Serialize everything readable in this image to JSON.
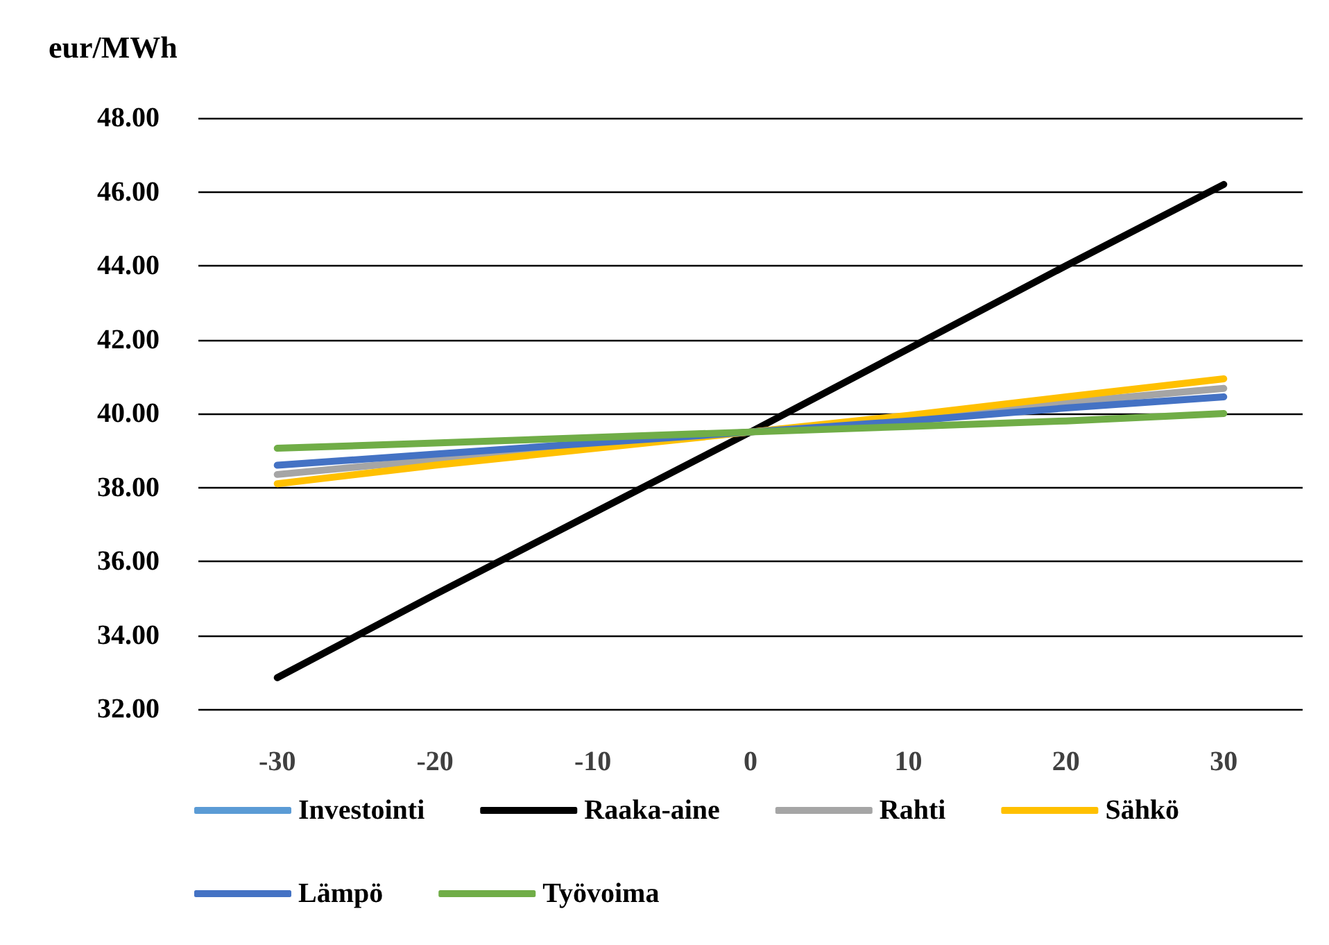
{
  "chart_data": {
    "type": "line",
    "ylabel": "eur/MWh",
    "categories": [
      "-30",
      "-20",
      "-10",
      "0",
      "10",
      "20",
      "30"
    ],
    "series": [
      {
        "name": "Investointi",
        "color": "#5b9bd5",
        "values": [
          null,
          null,
          null,
          null,
          null,
          null,
          null
        ]
      },
      {
        "name": "Raaka-aine",
        "color": "#000000",
        "values": [
          32.85,
          35.1,
          37.3,
          39.5,
          41.75,
          44.0,
          46.2
        ]
      },
      {
        "name": "Rahti",
        "color": "#a5a5a5",
        "values": [
          38.35,
          38.75,
          39.1,
          39.5,
          39.9,
          40.3,
          40.68
        ]
      },
      {
        "name": "Sähkö",
        "color": "#ffc000",
        "values": [
          38.1,
          38.6,
          39.05,
          39.5,
          39.95,
          40.45,
          40.94
        ]
      },
      {
        "name": "Lämpö",
        "color": "#4472c4",
        "values": [
          38.6,
          38.9,
          39.2,
          39.5,
          39.8,
          40.15,
          40.45
        ]
      },
      {
        "name": "Työvoima",
        "color": "#70ad47",
        "values": [
          39.06,
          39.2,
          39.35,
          39.5,
          39.65,
          39.8,
          40.0
        ]
      }
    ],
    "ylim": [
      32,
      48
    ],
    "yticks": [
      {
        "value": 32,
        "label": "32.00"
      },
      {
        "value": 34,
        "label": "34.00"
      },
      {
        "value": 36,
        "label": "36.00"
      },
      {
        "value": 38,
        "label": "38.00"
      },
      {
        "value": 40,
        "label": "40.00"
      },
      {
        "value": 42,
        "label": "42.00"
      },
      {
        "value": 44,
        "label": "44.00"
      },
      {
        "value": 46,
        "label": "46.00"
      },
      {
        "value": 48,
        "label": "48.00"
      }
    ],
    "grid": "y",
    "legend": "bottom",
    "marker": "none",
    "line_style": "solid"
  }
}
